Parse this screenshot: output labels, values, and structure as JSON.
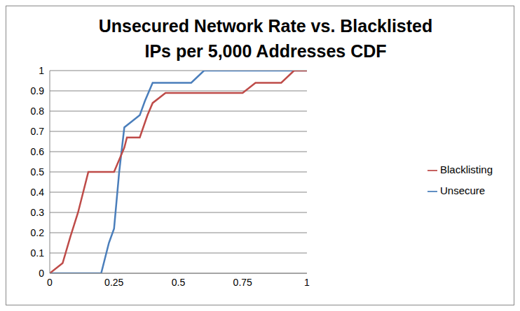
{
  "chart_data": {
    "type": "line",
    "title": "Unsecured Network Rate vs. Blacklisted IPs per 5,000 Addresses CDF",
    "xlim": [
      0,
      1
    ],
    "xticks": [
      0,
      0.25,
      0.5,
      0.75,
      1
    ],
    "ylim": [
      0,
      1
    ],
    "yticks": [
      0,
      0.1,
      0.2,
      0.3,
      0.4,
      0.5,
      0.6,
      0.7,
      0.8,
      0.9,
      1
    ],
    "grid": true,
    "legend": "right",
    "series": [
      {
        "name": "Unsecure",
        "color": "#4a7ebb",
        "x": [
          0,
          0.2,
          0.21,
          0.23,
          0.25,
          0.27,
          0.29,
          0.32,
          0.35,
          0.37,
          0.4,
          0.55,
          0.6,
          1
        ],
        "values": [
          0,
          0,
          0.05,
          0.15,
          0.22,
          0.5,
          0.72,
          0.75,
          0.78,
          0.85,
          0.94,
          0.94,
          1,
          1
        ]
      },
      {
        "name": "Blacklisting",
        "color": "#be4b48",
        "x": [
          0,
          0.05,
          0.08,
          0.11,
          0.15,
          0.25,
          0.29,
          0.3,
          0.35,
          0.38,
          0.4,
          0.45,
          0.75,
          0.8,
          0.9,
          0.95,
          1
        ],
        "values": [
          0,
          0.05,
          0.18,
          0.3,
          0.5,
          0.5,
          0.62,
          0.67,
          0.67,
          0.78,
          0.84,
          0.89,
          0.89,
          0.94,
          0.94,
          1,
          1
        ]
      }
    ]
  }
}
